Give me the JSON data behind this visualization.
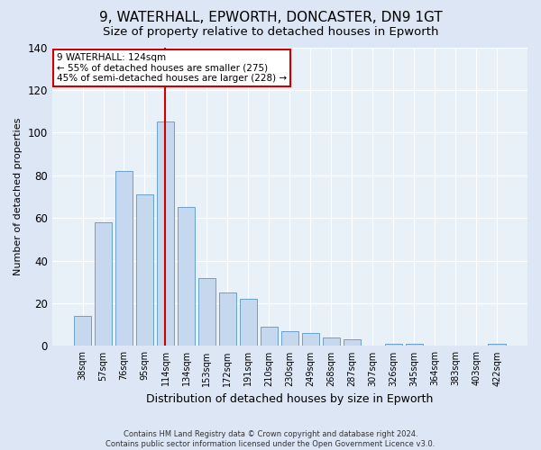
{
  "title": "9, WATERHALL, EPWORTH, DONCASTER, DN9 1GT",
  "subtitle": "Size of property relative to detached houses in Epworth",
  "xlabel": "Distribution of detached houses by size in Epworth",
  "ylabel": "Number of detached properties",
  "categories": [
    "38sqm",
    "57sqm",
    "76sqm",
    "95sqm",
    "114sqm",
    "134sqm",
    "153sqm",
    "172sqm",
    "191sqm",
    "210sqm",
    "230sqm",
    "249sqm",
    "268sqm",
    "287sqm",
    "307sqm",
    "326sqm",
    "345sqm",
    "364sqm",
    "383sqm",
    "403sqm",
    "422sqm"
  ],
  "values": [
    14,
    58,
    82,
    71,
    105,
    65,
    32,
    25,
    22,
    9,
    7,
    6,
    4,
    3,
    0,
    1,
    1,
    0,
    0,
    0,
    1
  ],
  "bar_color": "#c5d8ed",
  "bar_edge_color": "#6b9fcc",
  "vline_bar_index": 4,
  "vline_color": "#cc0000",
  "ylim": [
    0,
    140
  ],
  "yticks": [
    0,
    20,
    40,
    60,
    80,
    100,
    120,
    140
  ],
  "annotation_text_line1": "9 WATERHALL: 124sqm",
  "annotation_text_line2": "← 55% of detached houses are smaller (275)",
  "annotation_text_line3": "45% of semi-detached houses are larger (228) →",
  "annotation_box_color": "#ffffff",
  "annotation_box_edge": "#cc0000",
  "footer_line1": "Contains HM Land Registry data © Crown copyright and database right 2024.",
  "footer_line2": "Contains public sector information licensed under the Open Government Licence v3.0.",
  "background_color": "#dce6f5",
  "plot_background": "#e8f0f8",
  "grid_color": "#ffffff",
  "title_fontsize": 11,
  "subtitle_fontsize": 9.5,
  "xlabel_fontsize": 9,
  "ylabel_fontsize": 8
}
